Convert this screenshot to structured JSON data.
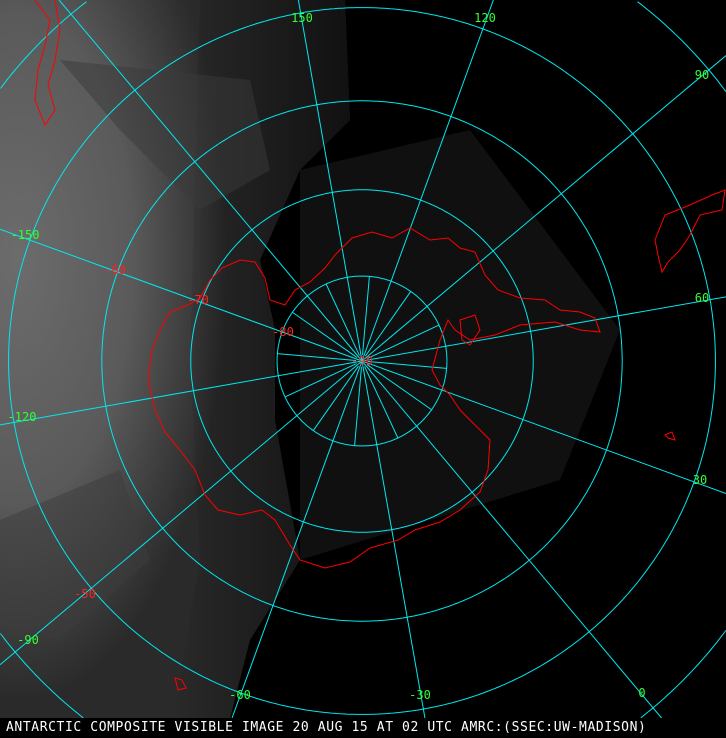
{
  "caption": "ANTARCTIC COMPOSITE VISIBLE IMAGE 20 AUG 15 AT 02 UTC AMRC:(SSEC:UW-MADISON)",
  "map": {
    "projection": "south polar stereographic",
    "colors": {
      "grid": "#00e8f0",
      "coastline": "#ff0000",
      "longitude_labels": "#33ff33",
      "latitude_labels": "#ff2020"
    },
    "longitude_labels": [
      "150",
      "120",
      "90",
      "60",
      "30",
      "0",
      "-30",
      "-60",
      "-90",
      "-120",
      "-150"
    ],
    "latitude_labels": [
      "-90",
      "-80",
      "-70",
      "-60",
      "-50"
    ]
  }
}
